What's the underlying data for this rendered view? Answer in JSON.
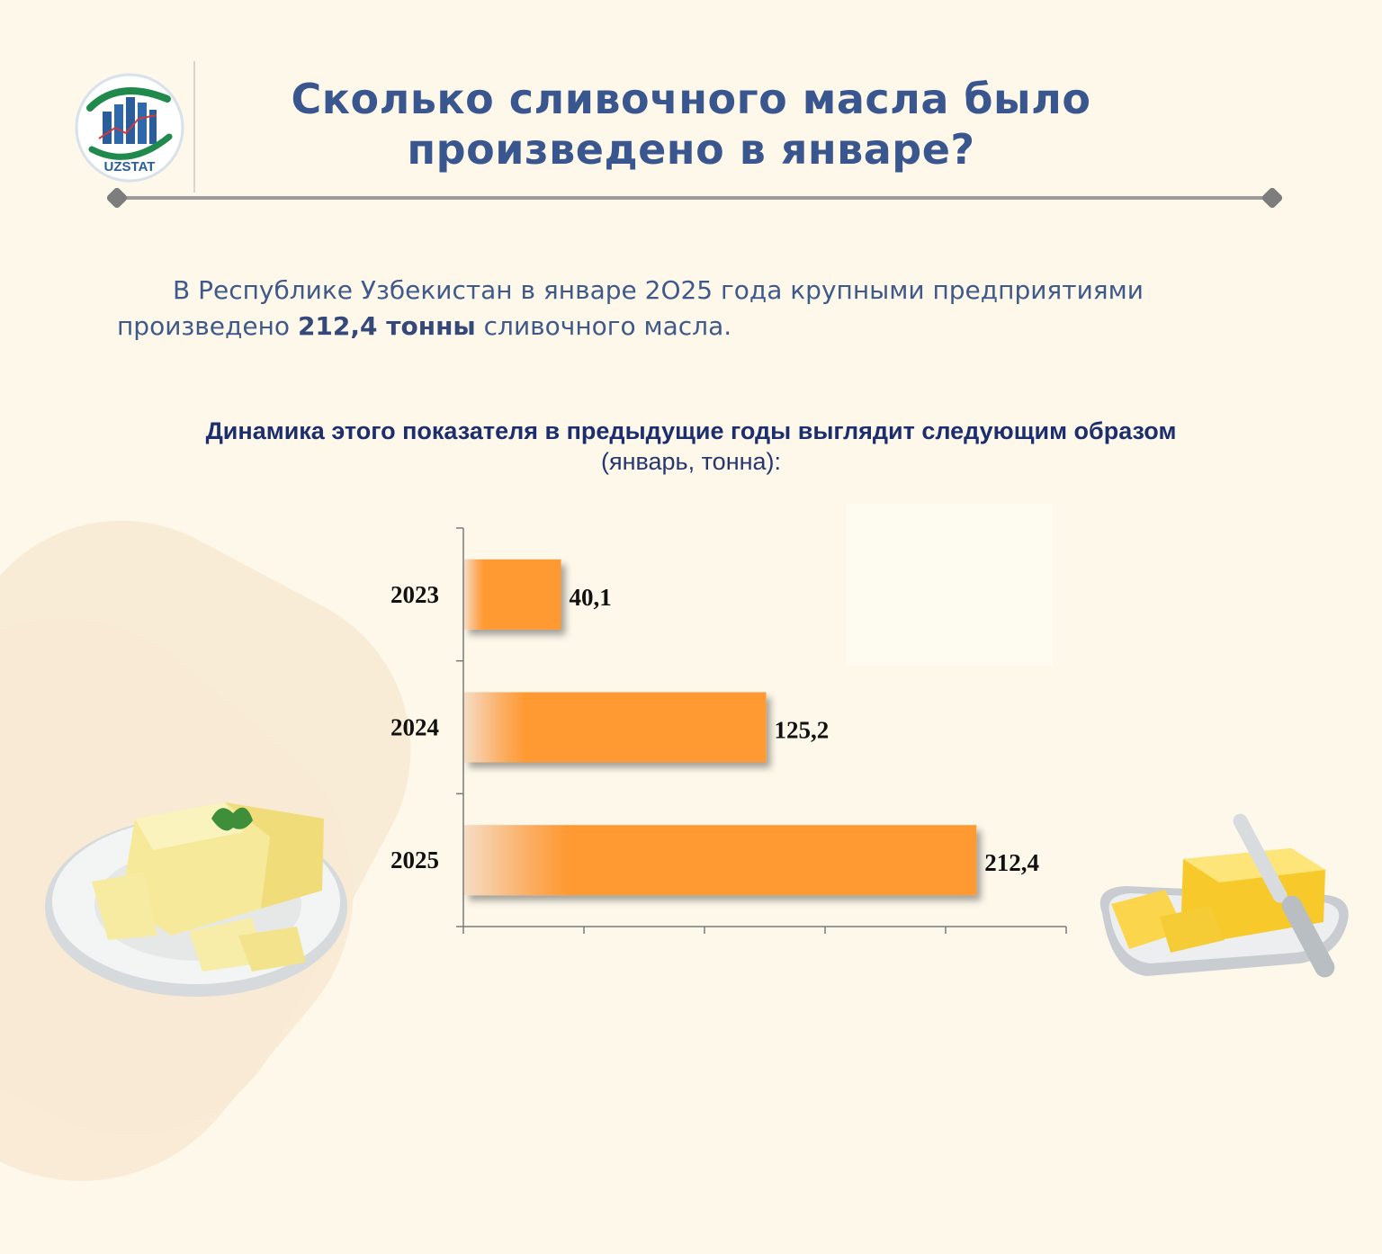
{
  "logo": {
    "text": "UZSTAT"
  },
  "header": {
    "title_line1": "Сколько сливочного масла было",
    "title_line2": "произведено в январе?"
  },
  "intro": {
    "text_before": "В Республике Узбекистан в январе 2О25 года крупными предприятиями произведено ",
    "highlight": "212,4 тонны",
    "text_after": " сливочного масла."
  },
  "subtitle": {
    "bold": "Динамика этого показателя в предыдущие годы выглядит следующим образом",
    "normal": "(январь, тонна):"
  },
  "colors": {
    "title": "#3a568f",
    "bar": "#ff9a33",
    "bar_fade": "#f8dcc0"
  },
  "chart_data": {
    "type": "bar",
    "orientation": "horizontal",
    "categories": [
      "2023",
      "2024",
      "2025"
    ],
    "values": [
      40.1,
      125.2,
      212.4
    ],
    "value_labels": [
      "40,1",
      "125,2",
      "212,4"
    ],
    "xlim": [
      0,
      250
    ],
    "title": "Динамика этого показателя в предыдущие годы выглядит следующим образом",
    "subtitle": "(январь, тонна):",
    "xlabel": "",
    "ylabel": "",
    "grid": false,
    "legend": "none"
  }
}
